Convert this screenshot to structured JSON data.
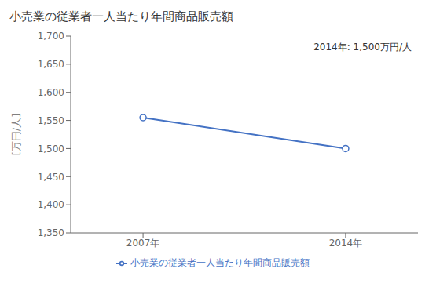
{
  "chart_data": {
    "type": "line",
    "title": "小売業の従業者一人当たり年間商品販売額",
    "y_label": "[万円/人]",
    "annotation": "2014年: 1,500万円/人",
    "x": [
      2007,
      2014
    ],
    "xlim": [
      2004.5,
      2016.5
    ],
    "xticks": [
      {
        "value": 2007,
        "label": "2007年"
      },
      {
        "value": 2014,
        "label": "2014年"
      }
    ],
    "ylim": [
      1350,
      1700
    ],
    "yticks": [
      {
        "value": 1350,
        "label": "1,350"
      },
      {
        "value": 1400,
        "label": "1,400"
      },
      {
        "value": 1450,
        "label": "1,450"
      },
      {
        "value": 1500,
        "label": "1,500"
      },
      {
        "value": 1550,
        "label": "1,550"
      },
      {
        "value": 1600,
        "label": "1,600"
      },
      {
        "value": 1650,
        "label": "1,650"
      },
      {
        "value": 1700,
        "label": "1,700"
      }
    ],
    "series": [
      {
        "name": "小売業の従業者一人当たり年間商品販売額",
        "color": "#4472C4",
        "marker": "circle",
        "values": [
          1555,
          1500
        ]
      }
    ],
    "grid": false,
    "legend": "bottom"
  }
}
